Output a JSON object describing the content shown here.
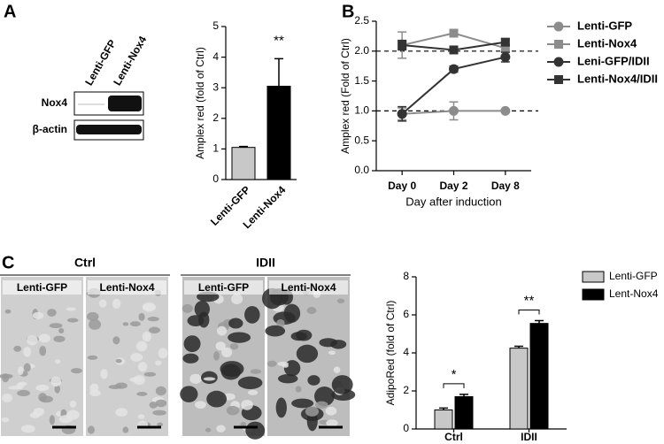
{
  "panel_labels": [
    "A",
    "B",
    "C"
  ],
  "blot": {
    "lanes": [
      "Lenti-GFP",
      "Lenti-Nox4"
    ],
    "rows": [
      "Nox4",
      "β-actin"
    ]
  },
  "micrographs": {
    "groups": [
      "Ctrl",
      "IDII"
    ],
    "panels": [
      "Lenti-GFP",
      "Lenti-Nox4",
      "Lenti-GFP",
      "Lenti-Nox4"
    ]
  },
  "chart_data": [
    {
      "type": "bar",
      "ylabel": "Amplex red (fold of Ctrl)",
      "categories": [
        "Lenti-GFP",
        "Lenti-Nox4"
      ],
      "values": [
        1.05,
        3.05
      ],
      "errors": [
        0.03,
        0.9
      ],
      "colors": [
        "#c8c8c8",
        "#000000"
      ],
      "ylim": [
        0,
        5
      ],
      "yticks": [
        0,
        1,
        2,
        3,
        4,
        5
      ],
      "annotations": [
        {
          "category": "Lenti-Nox4",
          "text": "**"
        }
      ]
    },
    {
      "type": "line",
      "xlabel": "Day after induction",
      "ylabel": "Amplex red (Fold of Ctrl)",
      "categories": [
        "Day 0",
        "Day 2",
        "Day 8"
      ],
      "series": [
        {
          "name": "Lenti-GFP",
          "color": "#8c8c8c",
          "marker": "circle",
          "values": [
            0.95,
            1.0,
            1.0
          ],
          "errors": [
            0.1,
            0.15,
            0.02
          ]
        },
        {
          "name": "Lenti-Nox4",
          "color": "#8c8c8c",
          "marker": "square",
          "values": [
            2.1,
            2.3,
            2.05
          ],
          "errors": [
            0.22,
            0.05,
            0.05
          ]
        },
        {
          "name": "Leni-GFP/IDII",
          "color": "#333333",
          "marker": "circle",
          "values": [
            0.95,
            1.7,
            1.9
          ],
          "errors": [
            0.12,
            0.05,
            0.08
          ]
        },
        {
          "name": "Lenti-Nox4/IDII",
          "color": "#333333",
          "marker": "square",
          "values": [
            2.1,
            2.02,
            2.15
          ],
          "errors": [
            0.08,
            0.06,
            0.05
          ]
        }
      ],
      "ylim": [
        0,
        2.5
      ],
      "yticks": [
        {
          "value": 0,
          "label": "0.0"
        },
        {
          "value": 0.5,
          "label": "0.5"
        },
        {
          "value": 1,
          "label": "1.0"
        },
        {
          "value": 1.5,
          "label": "1.5"
        },
        {
          "value": 2,
          "label": "2.0"
        },
        {
          "value": 2.5,
          "label": "2.5"
        }
      ],
      "reference_lines": [
        1,
        2
      ],
      "legend": "right"
    },
    {
      "type": "grouped_bar",
      "ylabel": "AdipoRed (fold of Ctrl)",
      "categories": [
        "Ctrl",
        "IDII"
      ],
      "series": [
        {
          "name": "Lenti-GFP",
          "color": "#c8c8c8",
          "values": [
            1.0,
            4.25
          ],
          "errors": [
            0.1,
            0.1
          ]
        },
        {
          "name": "Lent-Nox4",
          "color": "#000000",
          "values": [
            1.7,
            5.55
          ],
          "errors": [
            0.12,
            0.15
          ]
        }
      ],
      "ylim": [
        0,
        8
      ],
      "yticks": [
        0,
        2,
        4,
        6,
        8
      ],
      "annotations": [
        {
          "category": "Ctrl",
          "text": "*"
        },
        {
          "category": "IDII",
          "text": "**"
        }
      ],
      "legend": "top-right"
    }
  ]
}
